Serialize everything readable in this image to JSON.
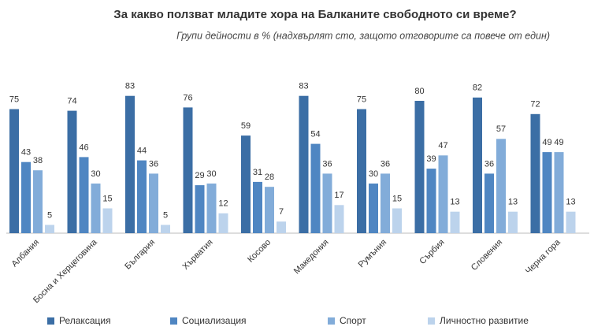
{
  "chart_data": {
    "type": "bar",
    "title": "За какво ползват младите хора на Балканите свободното си време?",
    "subtitle": "Групи дейности в % (надхвърлят сто, защото отговорите са повече от един)",
    "categories": [
      "Албания",
      "Босна и Херцеговина",
      "България",
      "Хърватия",
      "Косово",
      "Македония",
      "Румъния",
      "Сърбия",
      "Словения",
      "Черна гора"
    ],
    "series": [
      {
        "name": "Релаксация",
        "color": "#3b6ea5",
        "values": [
          75,
          74,
          83,
          76,
          59,
          83,
          75,
          80,
          82,
          72
        ]
      },
      {
        "name": "Социализация",
        "color": "#4f86c2",
        "values": [
          43,
          46,
          44,
          29,
          31,
          54,
          30,
          39,
          36,
          49
        ]
      },
      {
        "name": "Спорт",
        "color": "#82acd9",
        "values": [
          38,
          30,
          36,
          30,
          28,
          36,
          36,
          47,
          57,
          49
        ]
      },
      {
        "name": "Личностно развитие",
        "color": "#bcd3ec",
        "values": [
          5,
          15,
          5,
          12,
          7,
          17,
          15,
          13,
          13,
          13
        ]
      }
    ]
  }
}
